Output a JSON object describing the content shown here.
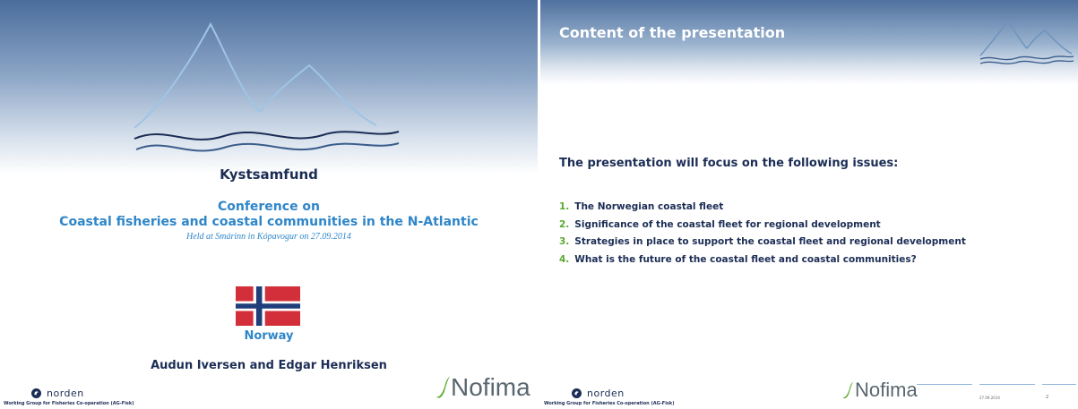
{
  "slide1": {
    "title": "Kystsamfund",
    "conference_line1": "Conference on",
    "conference_line2": "Coastal fisheries and coastal communities in the N-Atlantic",
    "held": "Held at Smárinn in Kópavogur on 27.09.2014",
    "country": "Norway",
    "authors": "Audun Iversen and Edgar Henriksen"
  },
  "footer": {
    "norden_name": "norden",
    "norden_subtitle": "Working Group for Fisheries Co-operation (AG-Fisk)",
    "nofima": "Nofima",
    "date": "27.09.2014",
    "page": "2"
  },
  "slide2": {
    "heading": "Content of the presentation",
    "intro": "The presentation will focus on the following issues:",
    "issues": [
      {
        "num": "1.",
        "text": "The Norwegian coastal fleet"
      },
      {
        "num": "2.",
        "text": "Significance of the coastal fleet for regional development"
      },
      {
        "num": "3.",
        "text": "Strategies in place to support the coastal fleet and regional development"
      },
      {
        "num": "4.",
        "text": "What is the future of the coastal fleet and coastal communities?"
      }
    ]
  },
  "colors": {
    "navy": "#1c2d55",
    "light_blue": "#2f86c8",
    "green": "#5aaa2f",
    "flag_red": "#d22f3a",
    "flag_blue": "#1f3e7a"
  }
}
